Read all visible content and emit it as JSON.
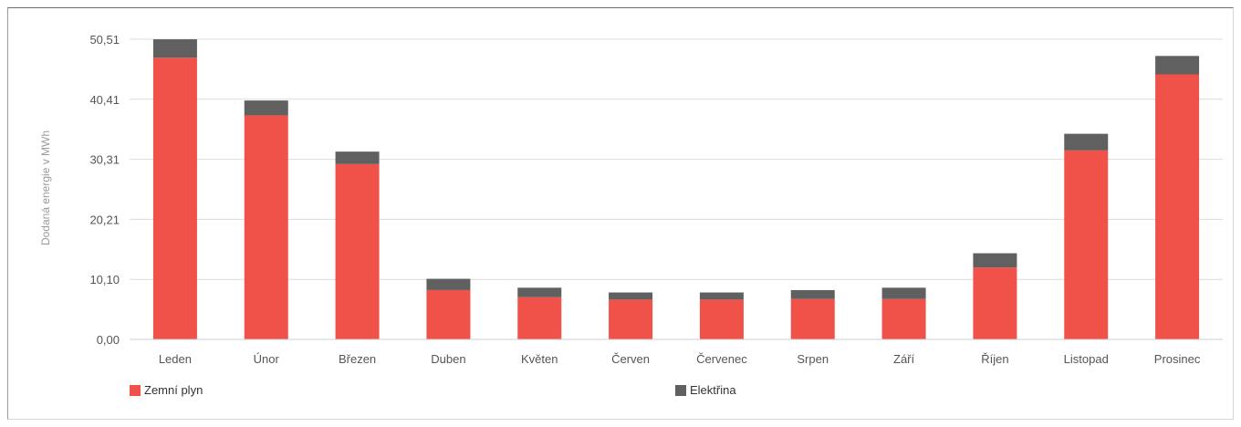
{
  "chart_data": {
    "type": "bar",
    "stacked": true,
    "categories": [
      "Leden",
      "Únor",
      "Březen",
      "Duben",
      "Květen",
      "Červen",
      "Červenec",
      "Srpen",
      "Září",
      "Říjen",
      "Listopad",
      "Prosinec"
    ],
    "series": [
      {
        "name": "Zemní plyn",
        "color": "#f0524a",
        "values": [
          47.4,
          37.7,
          29.5,
          8.3,
          7.1,
          6.7,
          6.7,
          6.8,
          6.8,
          12.1,
          31.8,
          44.6
        ]
      },
      {
        "name": "Elektřina",
        "color": "#606060",
        "values": [
          3.1,
          2.5,
          2.1,
          1.9,
          1.6,
          1.2,
          1.2,
          1.5,
          1.9,
          2.4,
          2.8,
          3.1
        ]
      }
    ],
    "yticks": [
      "0,00",
      "10,10",
      "20,21",
      "30,31",
      "40,41",
      "50,51"
    ],
    "ylim": [
      0,
      50.51
    ],
    "ylabel": "Dodaná energie v MWh",
    "xlabel": "",
    "title": "",
    "grid": true,
    "legend_position": "bottom"
  }
}
